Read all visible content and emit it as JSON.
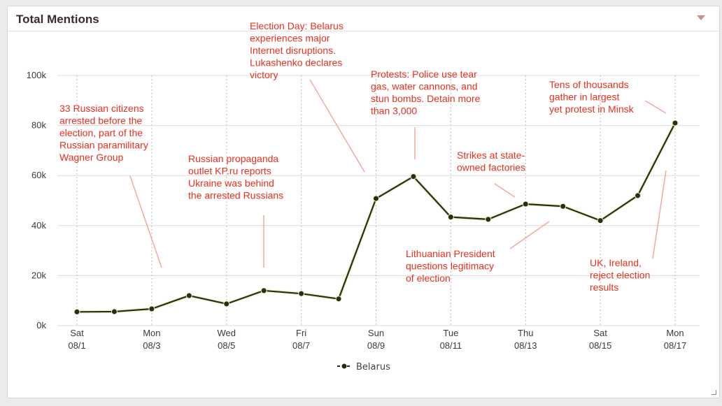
{
  "widget": {
    "title": "Total Mentions",
    "menu_icon": "chevron-down-icon",
    "resize_icon": "resize-handle-icon"
  },
  "chart_data": {
    "type": "line",
    "title": "",
    "xlabel": "",
    "ylabel": "",
    "ylim": [
      0,
      100000
    ],
    "y_ticks": [
      {
        "value": 0,
        "label": "0k"
      },
      {
        "value": 20000,
        "label": "20k"
      },
      {
        "value": 40000,
        "label": "40k"
      },
      {
        "value": 60000,
        "label": "60k"
      },
      {
        "value": 80000,
        "label": "80k"
      },
      {
        "value": 100000,
        "label": "100k"
      }
    ],
    "x": [
      "08/1",
      "08/2",
      "08/3",
      "08/4",
      "08/5",
      "08/6",
      "08/7",
      "08/8",
      "08/9",
      "08/10",
      "08/11",
      "08/12",
      "08/13",
      "08/14",
      "08/15",
      "08/16",
      "08/17"
    ],
    "x_ticks": [
      {
        "index": 0,
        "day": "Sat",
        "date": "08/1"
      },
      {
        "index": 2,
        "day": "Mon",
        "date": "08/3"
      },
      {
        "index": 4,
        "day": "Wed",
        "date": "08/5"
      },
      {
        "index": 6,
        "day": "Fri",
        "date": "08/7"
      },
      {
        "index": 8,
        "day": "Sun",
        "date": "08/9"
      },
      {
        "index": 10,
        "day": "Tue",
        "date": "08/11"
      },
      {
        "index": 12,
        "day": "Thu",
        "date": "08/13"
      },
      {
        "index": 14,
        "day": "Sat",
        "date": "08/15"
      },
      {
        "index": 16,
        "day": "Mon",
        "date": "08/17"
      }
    ],
    "series": [
      {
        "name": "Belarus",
        "color": "#2b2e0e",
        "values": [
          5500,
          5600,
          6700,
          12000,
          8700,
          14000,
          12800,
          10700,
          50800,
          59600,
          43400,
          42500,
          48600,
          47700,
          42000,
          52000,
          81000
        ]
      }
    ],
    "grid": true,
    "legend": "bottom-center",
    "annotation_color": "#e8301f",
    "annotations": [
      {
        "lines": [
          "33 Russian citizens",
          "arrested before the",
          "election, part of the",
          "Russian paramilitary",
          "Wagner Group"
        ]
      },
      {
        "lines": [
          "Russian propaganda",
          "outlet KP.ru reports",
          "Ukraine was behind",
          "the arrested Russians"
        ]
      },
      {
        "lines": [
          "Election Day: Belarus",
          "experiences major",
          "Internet disruptions.",
          "Lukashenko declares",
          "victory"
        ]
      },
      {
        "lines": [
          "Protests: Police use tear",
          "gas, water cannons, and",
          "stun bombs. Detain more",
          "than 3,000"
        ]
      },
      {
        "lines": [
          "Strikes at state-",
          "owned factories"
        ]
      },
      {
        "lines": [
          "Lithuanian President",
          "questions legitimacy",
          "of election"
        ]
      },
      {
        "lines": [
          "Tens of thousands",
          "gather in largest",
          "yet protest in Minsk"
        ]
      },
      {
        "lines": [
          "UK, Ireland,",
          "reject election",
          "results"
        ]
      }
    ]
  }
}
